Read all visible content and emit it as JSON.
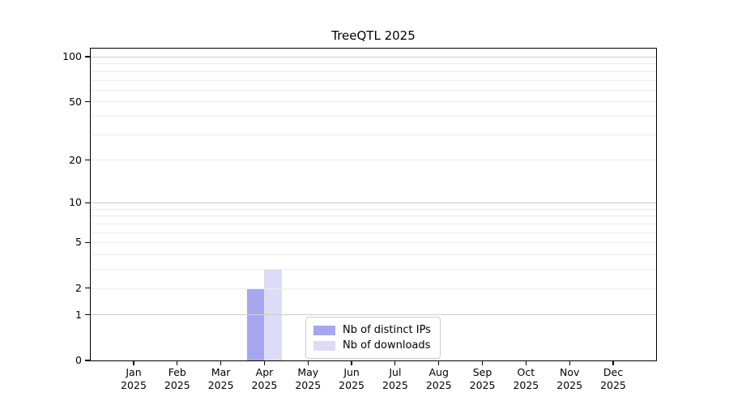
{
  "chart_data": {
    "type": "bar",
    "title": "TreeQTL 2025",
    "x_axis": {
      "months": [
        "Jan",
        "Feb",
        "Mar",
        "Apr",
        "May",
        "Jun",
        "Jul",
        "Aug",
        "Sep",
        "Oct",
        "Nov",
        "Dec"
      ],
      "year": "2025"
    },
    "y_axis": {
      "scale": "log10(1+y)",
      "tick_values": [
        0,
        1,
        2,
        5,
        10,
        20,
        50,
        100
      ],
      "major_gridline_values": [
        1,
        10,
        100
      ],
      "minor_gridline_values": [
        2,
        3,
        4,
        5,
        6,
        7,
        8,
        9,
        20,
        30,
        40,
        50,
        60,
        70,
        80,
        90
      ]
    },
    "series": [
      {
        "name": "Nb of distinct IPs",
        "color": "#a7a7f0",
        "values": [
          0,
          0,
          0,
          2,
          0,
          0,
          0,
          0,
          0,
          0,
          0,
          0
        ]
      },
      {
        "name": "Nb of downloads",
        "color": "#dcdcf8",
        "values": [
          0,
          0,
          0,
          3,
          0,
          0,
          0,
          0,
          0,
          0,
          0,
          0
        ]
      }
    ],
    "legend": {
      "position": "inside-bottom-center",
      "entries": [
        "Nb of distinct IPs",
        "Nb of downloads"
      ]
    },
    "grid": true,
    "colors": {
      "major_grid": "#cccccc",
      "minor_grid": "#ededed",
      "axis": "#000000",
      "background": "#ffffff"
    }
  }
}
